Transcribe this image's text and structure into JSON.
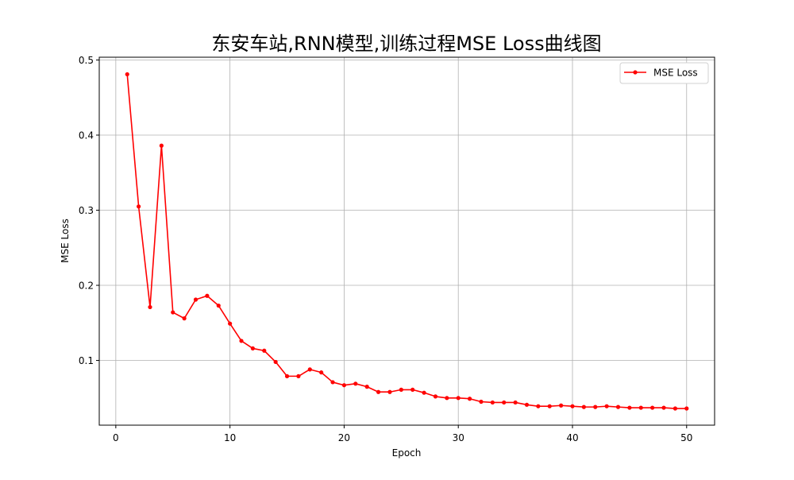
{
  "chart_data": {
    "type": "line",
    "title": "东安车站,RNN模型,训练过程MSE Loss曲线图",
    "xlabel": "Epoch",
    "ylabel": "MSE Loss",
    "xlim": [
      -1.45,
      52.45
    ],
    "ylim": [
      0.0138,
      0.5037
    ],
    "xticks": [
      0,
      10,
      20,
      30,
      40,
      50
    ],
    "yticks": [
      0.1,
      0.2,
      0.3,
      0.4,
      0.5
    ],
    "xtick_labels": [
      "0",
      "10",
      "20",
      "30",
      "40",
      "50"
    ],
    "ytick_labels": [
      "0.1",
      "0.2",
      "0.3",
      "0.4",
      "0.5"
    ],
    "grid": true,
    "legend_position": "top-right",
    "series": [
      {
        "name": "MSE Loss",
        "color": "#ff0000",
        "marker": "circle",
        "x": [
          1,
          2,
          3,
          4,
          5,
          6,
          7,
          8,
          9,
          10,
          11,
          12,
          13,
          14,
          15,
          16,
          17,
          18,
          19,
          20,
          21,
          22,
          23,
          24,
          25,
          26,
          27,
          28,
          29,
          30,
          31,
          32,
          33,
          34,
          35,
          36,
          37,
          38,
          39,
          40,
          41,
          42,
          43,
          44,
          45,
          46,
          47,
          48,
          49,
          50
        ],
        "values": [
          0.481,
          0.305,
          0.171,
          0.386,
          0.164,
          0.156,
          0.181,
          0.186,
          0.173,
          0.149,
          0.126,
          0.116,
          0.113,
          0.098,
          0.079,
          0.079,
          0.088,
          0.084,
          0.071,
          0.067,
          0.069,
          0.065,
          0.058,
          0.058,
          0.061,
          0.061,
          0.057,
          0.052,
          0.05,
          0.05,
          0.049,
          0.045,
          0.044,
          0.044,
          0.044,
          0.041,
          0.039,
          0.039,
          0.04,
          0.039,
          0.038,
          0.038,
          0.039,
          0.038,
          0.037,
          0.037,
          0.037,
          0.037,
          0.036,
          0.036
        ]
      }
    ]
  }
}
